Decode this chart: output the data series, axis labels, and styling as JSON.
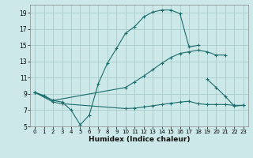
{
  "xlabel": "Humidex (Indice chaleur)",
  "background_color": "#cce8e8",
  "grid_color": "#aacccc",
  "line_color": "#1a6b6b",
  "xlim": [
    -0.5,
    23.5
  ],
  "ylim": [
    5,
    20
  ],
  "yticks": [
    5,
    7,
    9,
    11,
    13,
    15,
    17,
    19
  ],
  "xticks": [
    0,
    1,
    2,
    3,
    4,
    5,
    6,
    7,
    8,
    9,
    10,
    11,
    12,
    13,
    14,
    15,
    16,
    17,
    18,
    19,
    20,
    21,
    22,
    23
  ],
  "line1_x": [
    0,
    1,
    2,
    3,
    4,
    5,
    6,
    7,
    8,
    9,
    10,
    11,
    12,
    13,
    14,
    15,
    16,
    17,
    18
  ],
  "line1_y": [
    9.2,
    8.8,
    8.2,
    8.0,
    7.0,
    5.2,
    6.4,
    10.3,
    12.8,
    14.6,
    16.5,
    17.3,
    18.5,
    19.1,
    19.35,
    19.35,
    18.9,
    14.8,
    15.0
  ],
  "line2_x": [
    0,
    2,
    10,
    11,
    12,
    13,
    14,
    15,
    16,
    17,
    18,
    19,
    20,
    21
  ],
  "line2_y": [
    9.2,
    8.2,
    9.8,
    10.5,
    11.2,
    12.0,
    12.8,
    13.5,
    14.0,
    14.2,
    14.4,
    14.2,
    13.8,
    13.8
  ],
  "line3_x": [
    0,
    2,
    3,
    10,
    11,
    12,
    13,
    14,
    15,
    16,
    17,
    18,
    19,
    20,
    21,
    22,
    23
  ],
  "line3_y": [
    9.2,
    8.0,
    7.8,
    7.2,
    7.25,
    7.4,
    7.55,
    7.7,
    7.85,
    8.0,
    8.1,
    7.8,
    7.7,
    7.7,
    7.7,
    7.6,
    7.6
  ],
  "line4_x": [
    19,
    20,
    21,
    22,
    23
  ],
  "line4_y": [
    10.8,
    9.8,
    8.7,
    7.5,
    7.6
  ]
}
